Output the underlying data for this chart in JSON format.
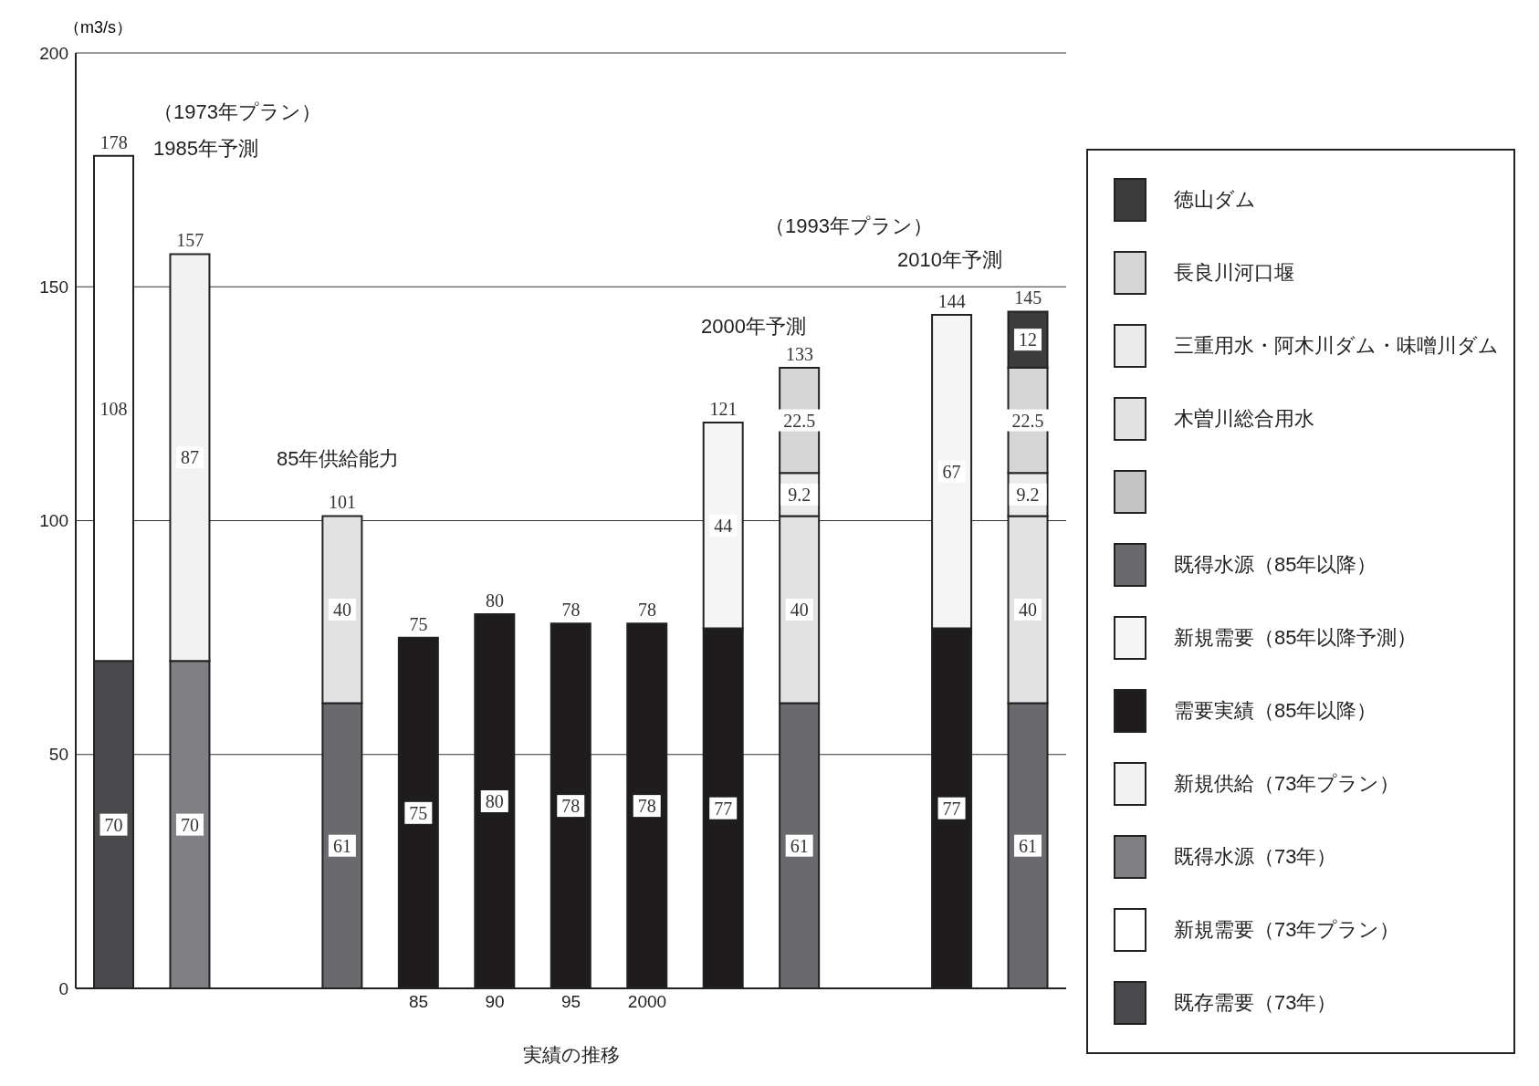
{
  "chart_data": {
    "type": "bar",
    "stacked": true,
    "ylabel": "（m3/s）",
    "xlabel": "実績の推移",
    "categories": [
      null,
      null,
      null,
      null,
      "85",
      "90",
      "95",
      "2000",
      null,
      null,
      null,
      null,
      null
    ],
    "ylim": [
      0,
      200
    ],
    "yticks": [
      0,
      50,
      100,
      150,
      200
    ],
    "grid": "y",
    "legend": "right",
    "data_labels": true,
    "totals": [
      "178",
      "157",
      null,
      "101",
      "75",
      "80",
      "78",
      "78",
      "121",
      "133",
      null,
      "144",
      "145"
    ],
    "annotations": [
      "（1973年プラン）",
      "1985年予測",
      "85年供給能力",
      "2000年予測",
      "（1993年プラン）",
      "2010年予測"
    ],
    "series": [
      {
        "name": "既存需要（73年）",
        "color": "#4a4a4c",
        "values": [
          70,
          null,
          null,
          null,
          null,
          null,
          null,
          null,
          null,
          null,
          null,
          null,
          null
        ]
      },
      {
        "name": "新規需要（73年プラン）",
        "color": "#ffffff",
        "values": [
          108,
          null,
          null,
          null,
          null,
          null,
          null,
          null,
          null,
          null,
          null,
          null,
          null
        ]
      },
      {
        "name": "既得水源（73年）",
        "color": "#808084",
        "values": [
          null,
          70,
          null,
          null,
          null,
          null,
          null,
          null,
          null,
          null,
          null,
          null,
          null
        ]
      },
      {
        "name": "新規供給（73年プラン）",
        "color": "#f2f2f2",
        "values": [
          null,
          87,
          null,
          null,
          null,
          null,
          null,
          null,
          null,
          null,
          null,
          null,
          null
        ]
      },
      {
        "name": "需要実績（85年以降）",
        "color": "#1e1c1d",
        "values": [
          null,
          null,
          null,
          null,
          75,
          80,
          78,
          78,
          77,
          null,
          null,
          77,
          null
        ]
      },
      {
        "name": "新規需要（85年以降予測）",
        "color": "#f5f5f5",
        "values": [
          null,
          null,
          null,
          null,
          null,
          null,
          null,
          null,
          44,
          null,
          null,
          67,
          null
        ]
      },
      {
        "name": "既得水源（85年以降）",
        "color": "#6a6a6e",
        "values": [
          null,
          null,
          null,
          61,
          null,
          null,
          null,
          null,
          null,
          61,
          null,
          null,
          61
        ]
      },
      {
        "color": "#c4c4c4",
        "values": [
          null,
          null,
          null,
          null,
          null,
          null,
          null,
          null,
          null,
          null,
          null,
          null,
          null
        ]
      },
      {
        "name": "木曽川総合用水",
        "color": "#e2e2e2",
        "values": [
          null,
          null,
          null,
          40,
          null,
          null,
          null,
          null,
          null,
          40,
          null,
          null,
          40
        ]
      },
      {
        "name": "三重用水・阿木川ダム・味噌川ダム",
        "color": "#ebebeb",
        "values": [
          null,
          null,
          null,
          null,
          null,
          null,
          null,
          null,
          null,
          9.2,
          null,
          null,
          9.2
        ]
      },
      {
        "name": "長良川河口堰",
        "color": "#d6d6d6",
        "values": [
          null,
          null,
          null,
          null,
          null,
          null,
          null,
          null,
          null,
          22.5,
          null,
          null,
          22.5
        ]
      },
      {
        "name": "徳山ダム",
        "color": "#3c3c3c",
        "values": [
          null,
          null,
          null,
          null,
          null,
          null,
          null,
          null,
          null,
          null,
          null,
          null,
          12
        ]
      }
    ]
  }
}
